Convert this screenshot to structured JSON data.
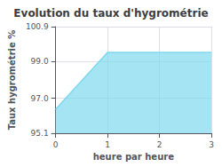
{
  "chart_data": {
    "type": "area",
    "title": "Evolution du taux d'hygrométrie",
    "xlabel": "heure par heure",
    "ylabel": "Taux hygrométrie %",
    "x": [
      0,
      1,
      3
    ],
    "values": [
      96.4,
      99.5,
      99.5
    ],
    "xlim": [
      0,
      3
    ],
    "xticks": [
      0,
      1,
      2,
      3
    ],
    "ylim": [
      95.1,
      100.9
    ],
    "yticks": [
      95.1,
      {
        "value": 97.0,
        "label": "97.0"
      },
      {
        "value": 99.0,
        "label": "99.0"
      },
      100.9
    ],
    "color": "#7dd8ee",
    "grid": true
  }
}
